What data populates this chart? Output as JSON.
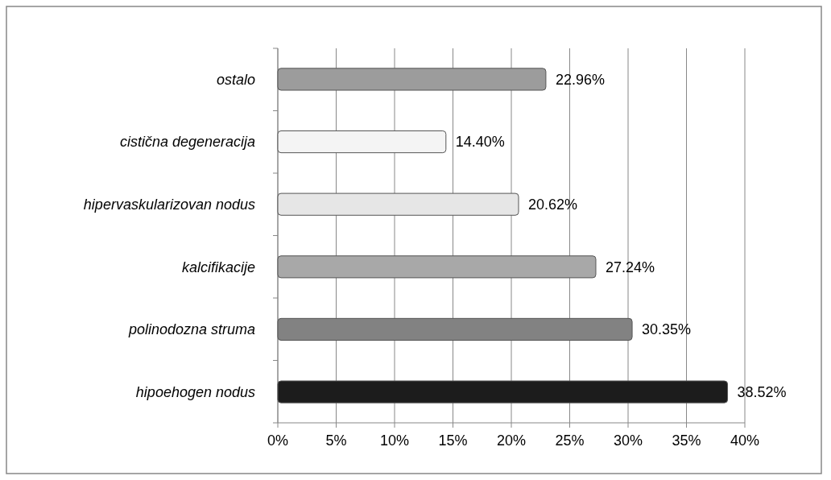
{
  "chart_data": {
    "type": "bar",
    "orientation": "horizontal",
    "categories": [
      "ostalo",
      "cistična degeneracija",
      "hipervaskularizovan nodus",
      "kalcifikacije",
      "polinodozna struma",
      "hipoehogen nodus"
    ],
    "values": [
      22.96,
      14.4,
      20.62,
      27.24,
      30.35,
      38.52
    ],
    "colors": [
      "#9c9c9c",
      "#f4f4f4",
      "#e6e6e6",
      "#a8a8a8",
      "#828282",
      "#1c1c1c"
    ],
    "value_labels": [
      "22.96%",
      "14.40%",
      "20.62%",
      "27.24%",
      "30.35%",
      "38.52%"
    ],
    "xlim": [
      0,
      40
    ],
    "xticks": [
      {
        "value": 0,
        "label": "0%"
      },
      {
        "value": 5,
        "label": "5%"
      },
      {
        "value": 10,
        "label": "10%"
      },
      {
        "value": 15,
        "label": "15%"
      },
      {
        "value": 20,
        "label": "20%"
      },
      {
        "value": 25,
        "label": "25%"
      },
      {
        "value": 30,
        "label": "30%"
      },
      {
        "value": 35,
        "label": "35%"
      },
      {
        "value": 40,
        "label": "40%"
      }
    ],
    "grid": "x"
  }
}
